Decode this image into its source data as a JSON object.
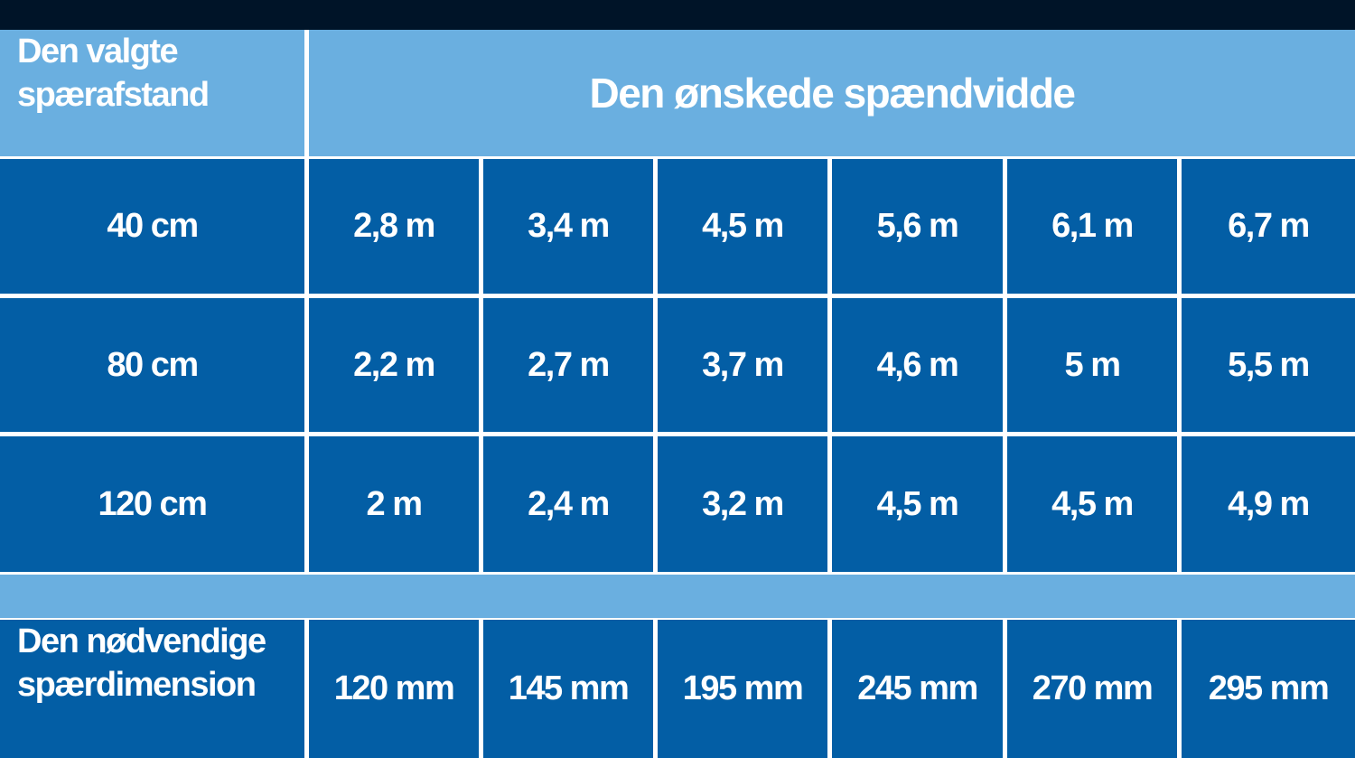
{
  "header": {
    "corner": [
      "Den valgte",
      "spærafstand"
    ],
    "title": "Den ønskede spændvidde"
  },
  "rows": [
    {
      "label": "40 cm",
      "cells": [
        "2,8 m",
        "3,4 m",
        "4,5 m",
        "5,6 m",
        "6,1 m",
        "6,7 m"
      ]
    },
    {
      "label": "80 cm",
      "cells": [
        "2,2 m",
        "2,7 m",
        "3,7 m",
        "4,6 m",
        "5 m",
        "5,5 m"
      ]
    },
    {
      "label": "120 cm",
      "cells": [
        "2 m",
        "2,4 m",
        "3,2 m",
        "4,5 m",
        "4,5 m",
        "4,9 m"
      ]
    }
  ],
  "footer": {
    "label": [
      "Den nødvendige",
      "spærdimension"
    ],
    "cells": [
      "120 mm",
      "145 mm",
      "195 mm",
      "245 mm",
      "270 mm",
      "295 mm"
    ]
  }
}
